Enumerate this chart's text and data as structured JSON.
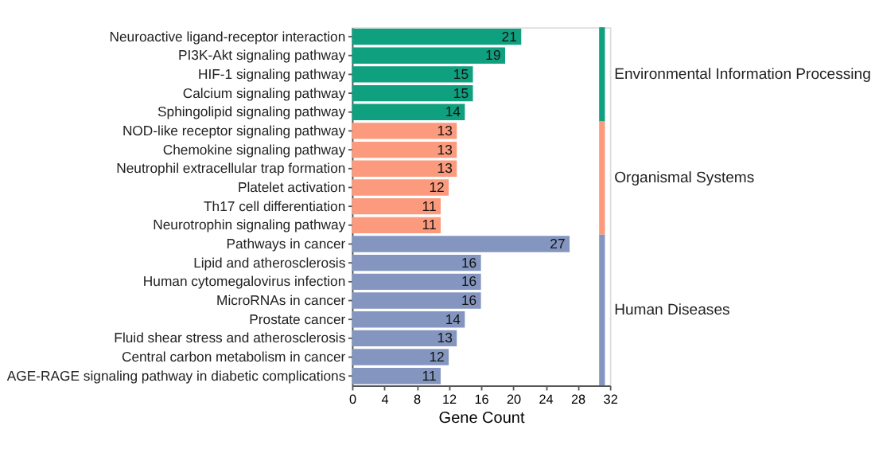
{
  "chart_data": {
    "type": "bar",
    "orientation": "horizontal",
    "xlabel": "Gene Count",
    "categories": [
      "Neuroactive ligand-receptor interaction",
      "PI3K-Akt signaling pathway",
      "HIF-1 signaling pathway",
      "Calcium signaling pathway",
      "Sphingolipid signaling pathway",
      "NOD-like receptor signaling pathway",
      "Chemokine signaling pathway",
      "Neutrophil extracellular trap formation",
      "Platelet activation",
      "Th17 cell differentiation",
      "Neurotrophin signaling pathway",
      "Pathways in cancer",
      "Lipid and atherosclerosis",
      "Human cytomegalovirus infection",
      "MicroRNAs in cancer",
      "Prostate cancer",
      "Fluid shear stress and atherosclerosis",
      "Central carbon metabolism in cancer",
      "AGE-RAGE signaling pathway in diabetic complications"
    ],
    "series": [
      {
        "name": "Environmental Information Processing",
        "color": "#0fa07f",
        "values": [
          21,
          19,
          15,
          15,
          14,
          null,
          null,
          null,
          null,
          null,
          null,
          null,
          null,
          null,
          null,
          null,
          null,
          null,
          null
        ]
      },
      {
        "name": "Organismal Systems",
        "color": "#fb9a7c",
        "values": [
          null,
          null,
          null,
          null,
          null,
          13,
          13,
          13,
          12,
          11,
          11,
          null,
          null,
          null,
          null,
          null,
          null,
          null,
          null
        ]
      },
      {
        "name": "Human Diseases",
        "color": "#8496c0",
        "values": [
          null,
          null,
          null,
          null,
          null,
          null,
          null,
          null,
          null,
          null,
          null,
          27,
          16,
          16,
          16,
          14,
          13,
          12,
          11
        ]
      }
    ],
    "data_labels": true,
    "xlim": [
      0,
      32
    ],
    "xticks": [
      0,
      4,
      8,
      12,
      16,
      20,
      24,
      28,
      32
    ]
  }
}
